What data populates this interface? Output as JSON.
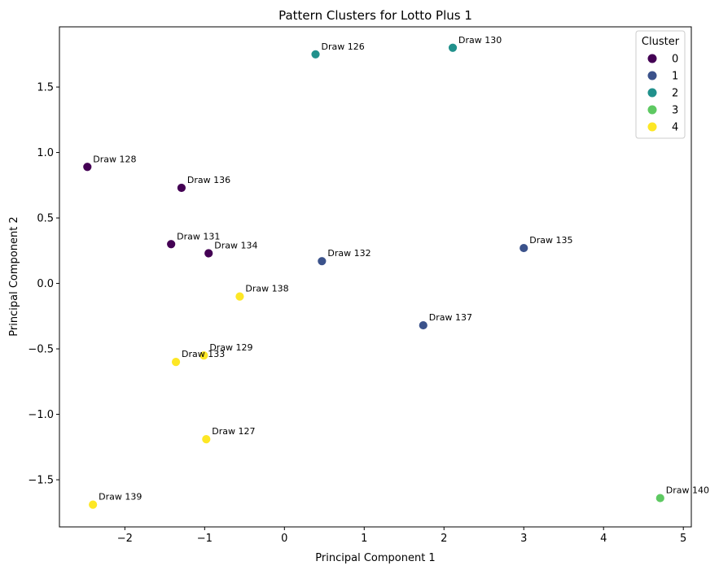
{
  "chart_data": {
    "type": "scatter",
    "title": "Pattern Clusters for Lotto Plus 1",
    "xlabel": "Principal Component 1",
    "ylabel": "Principal Component 2",
    "xlim": [
      -2.82,
      5.1
    ],
    "ylim": [
      -1.86,
      1.96
    ],
    "xticks": [
      -2,
      -1,
      0,
      1,
      2,
      3,
      4,
      5
    ],
    "xtick_labels": [
      "−2",
      "−1",
      "0",
      "1",
      "2",
      "3",
      "4",
      "5"
    ],
    "yticks": [
      -1.5,
      -1.0,
      -0.5,
      0.0,
      0.5,
      1.0,
      1.5
    ],
    "ytick_labels": [
      "−1.5",
      "−1.0",
      "−0.5",
      "0.0",
      "0.5",
      "1.0",
      "1.5"
    ],
    "grid": false,
    "legend": {
      "title": "Cluster",
      "position": "upper-right",
      "entries": [
        {
          "label": "0",
          "color": "#440154"
        },
        {
          "label": "1",
          "color": "#3b528b"
        },
        {
          "label": "2",
          "color": "#21918c"
        },
        {
          "label": "3",
          "color": "#5ec962"
        },
        {
          "label": "4",
          "color": "#fde725"
        }
      ]
    },
    "points": [
      {
        "label": "Draw 126",
        "x": 0.39,
        "y": 1.75,
        "cluster": 2
      },
      {
        "label": "Draw 127",
        "x": -0.98,
        "y": -1.19,
        "cluster": 4
      },
      {
        "label": "Draw 128",
        "x": -2.47,
        "y": 0.89,
        "cluster": 0
      },
      {
        "label": "Draw 129",
        "x": -1.01,
        "y": -0.55,
        "cluster": 4
      },
      {
        "label": "Draw 130",
        "x": 2.11,
        "y": 1.8,
        "cluster": 2
      },
      {
        "label": "Draw 131",
        "x": -1.42,
        "y": 0.3,
        "cluster": 0
      },
      {
        "label": "Draw 132",
        "x": 0.47,
        "y": 0.17,
        "cluster": 1
      },
      {
        "label": "Draw 133",
        "x": -1.36,
        "y": -0.6,
        "cluster": 4
      },
      {
        "label": "Draw 134",
        "x": -0.95,
        "y": 0.23,
        "cluster": 0
      },
      {
        "label": "Draw 135",
        "x": 3.0,
        "y": 0.27,
        "cluster": 1
      },
      {
        "label": "Draw 136",
        "x": -1.29,
        "y": 0.73,
        "cluster": 0
      },
      {
        "label": "Draw 137",
        "x": 1.74,
        "y": -0.32,
        "cluster": 1
      },
      {
        "label": "Draw 138",
        "x": -0.56,
        "y": -0.1,
        "cluster": 4
      },
      {
        "label": "Draw 139",
        "x": -2.4,
        "y": -1.69,
        "cluster": 4
      },
      {
        "label": "Draw 140",
        "x": 4.71,
        "y": -1.64,
        "cluster": 3
      }
    ]
  }
}
